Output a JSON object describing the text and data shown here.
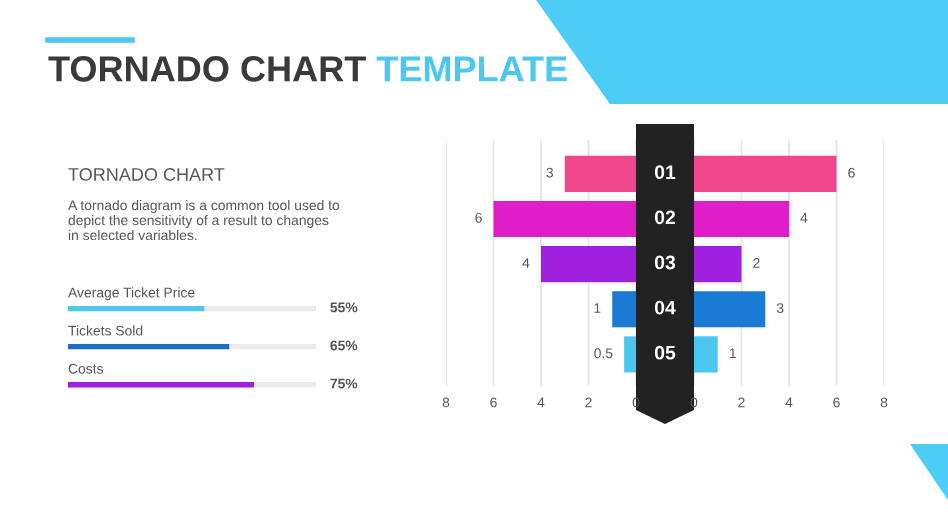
{
  "chart_data": [
    {
      "type": "bar",
      "orientation": "horizontal",
      "title": "TORNADO CHART TEMPLATE",
      "subtitle": "TORNADO CHART",
      "annotations": [
        "A tornado diagram is a common tool used to depict the sensitivity of a result to changes in selected variables."
      ],
      "categories": [
        "Average Ticket Price",
        "Tickets Sold",
        "Costs"
      ],
      "values": [
        55,
        65,
        75
      ],
      "colors": [
        "#4cc8ec",
        "#1a6fc4",
        "#a020e0"
      ],
      "value_labels": [
        "55%",
        "65%",
        "75%"
      ],
      "xlim": [
        0,
        100
      ]
    },
    {
      "type": "bar",
      "orientation": "horizontal",
      "categories": [
        "01",
        "02",
        "03",
        "04",
        "05"
      ],
      "values": [
        3,
        6,
        4,
        1,
        0.5
      ],
      "colors": [
        "#f0468c",
        "#e01ec8",
        "#a020e0",
        "#1a7ad4",
        "#4cc8f0"
      ],
      "data_labels": true,
      "xlim": [
        8,
        0
      ],
      "xticks": [
        8,
        6,
        4,
        2,
        0
      ],
      "grid": "x",
      "legend": false,
      "tick_labels": "x"
    },
    {
      "type": "bar",
      "orientation": "horizontal",
      "categories": [
        null,
        null,
        null,
        null,
        null
      ],
      "values": [
        6,
        4,
        2,
        3,
        1
      ],
      "colors": [
        "#f0468c",
        "#e01ec8",
        "#a020e0",
        "#1a7ad4",
        "#4cc8f0"
      ],
      "data_labels": true,
      "xlim": [
        0,
        8
      ],
      "xticks": [
        0,
        2,
        4,
        6,
        8
      ],
      "grid": "x",
      "legend": false,
      "tick_labels": "x"
    }
  ]
}
